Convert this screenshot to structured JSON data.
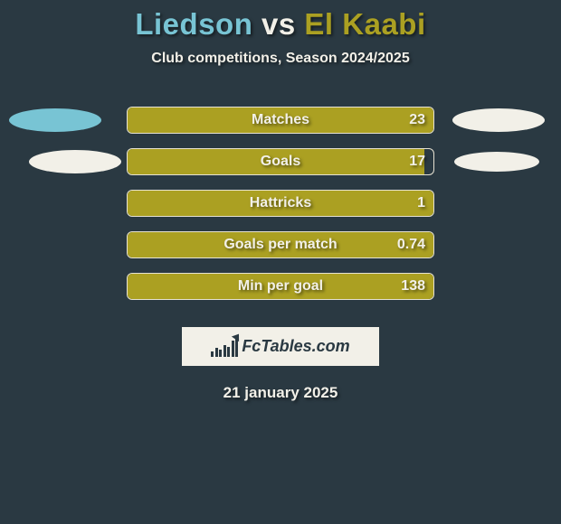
{
  "title": {
    "player1": "Liedson",
    "player1_color": "#78c4d4",
    "vs": " vs ",
    "vs_color": "#f2f0e8",
    "player2": "El Kaabi",
    "player2_color": "#aba022"
  },
  "subtitle": {
    "text": "Club competitions, Season 2024/2025",
    "color": "#f2f0e8"
  },
  "chart": {
    "track_width": 340,
    "track_border": "#e6e2d2",
    "fill_color": "#aba022",
    "label_color": "#f2f0e8",
    "value_color": "#f2f0e8",
    "rows": [
      {
        "label": "Matches",
        "value": "23",
        "fill_pct": 100,
        "show_ellipse_inside": true
      },
      {
        "label": "Goals",
        "value": "17",
        "fill_pct": 97,
        "show_ellipse_inside": false,
        "show_ellipse_outside": true
      },
      {
        "label": "Hattricks",
        "value": "1",
        "fill_pct": 100,
        "show_ellipse_inside": false
      },
      {
        "label": "Goals per match",
        "value": "0.74",
        "fill_pct": 100,
        "show_ellipse_inside": false
      },
      {
        "label": "Min per goal",
        "value": "138",
        "fill_pct": 100,
        "show_ellipse_inside": false
      }
    ],
    "ellipse_p1_color": "#78c4d4",
    "ellipse_p2_color": "#f2f0e8"
  },
  "logo": {
    "text": "FcTables.com"
  },
  "date": {
    "text": "21 january 2025",
    "color": "#f2f0e8"
  }
}
